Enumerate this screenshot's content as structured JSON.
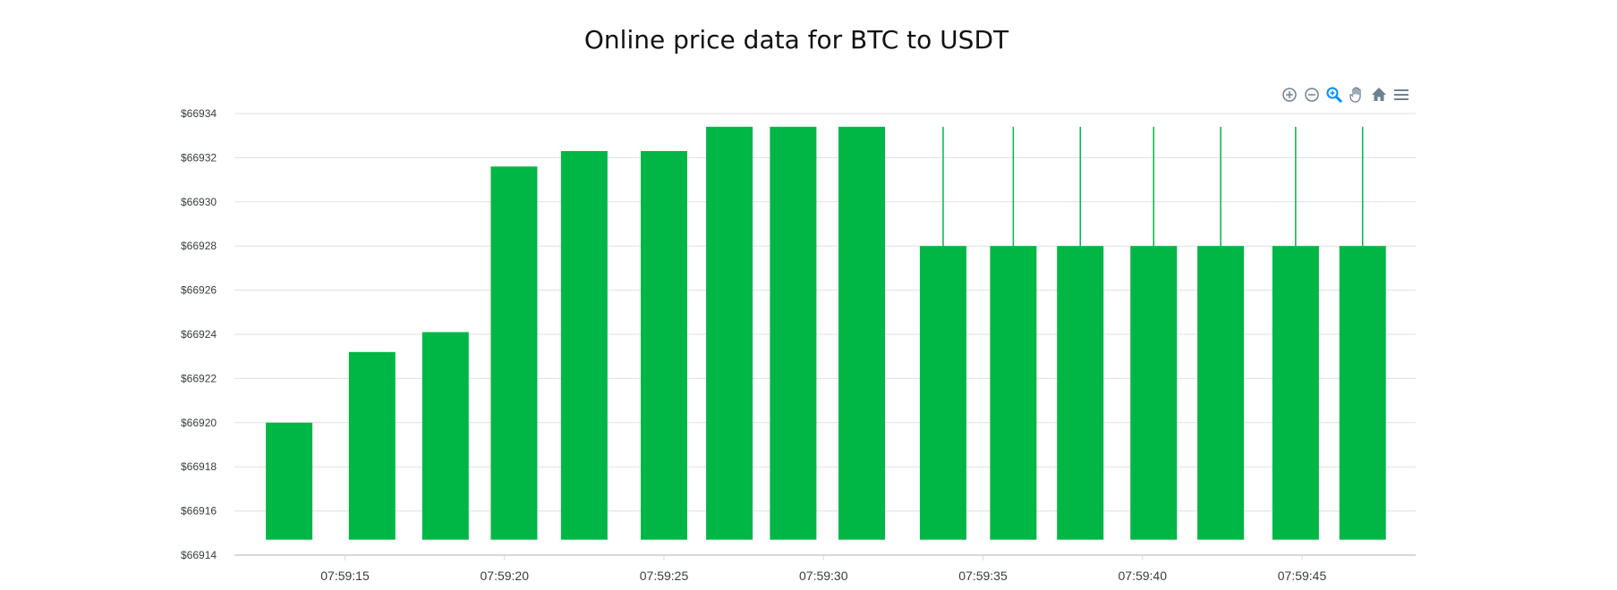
{
  "chart_data": {
    "type": "candlestick",
    "title": "Online price data for BTC to USDT",
    "xlabel": "",
    "ylabel": "",
    "ylim": [
      66914,
      66934
    ],
    "y_prefix": "$",
    "yticks": [
      66914,
      66916,
      66918,
      66920,
      66922,
      66924,
      66926,
      66928,
      66930,
      66932,
      66934
    ],
    "xticks": [
      "07:59:15",
      "07:59:20",
      "07:59:25",
      "07:59:30",
      "07:59:35",
      "07:59:40",
      "07:59:45"
    ],
    "xrange_seconds": [
      11.3,
      48.3
    ],
    "grid": true,
    "colors": {
      "up": "#00b746",
      "grid": "#e0e0e0",
      "axis": "#d8d8d8",
      "tool": "#6e8192",
      "tool_active": "#008ffb"
    },
    "candles": [
      {
        "t": 13.25,
        "open": 66914.7,
        "close": 66920.0,
        "high": 66920.0,
        "low": 66914.7
      },
      {
        "t": 15.85,
        "open": 66914.7,
        "close": 66923.2,
        "high": 66923.2,
        "low": 66914.7
      },
      {
        "t": 18.15,
        "open": 66914.7,
        "close": 66924.1,
        "high": 66924.1,
        "low": 66914.7
      },
      {
        "t": 20.3,
        "open": 66914.7,
        "close": 66931.6,
        "high": 66931.6,
        "low": 66914.7
      },
      {
        "t": 22.5,
        "open": 66914.7,
        "close": 66932.3,
        "high": 66932.3,
        "low": 66914.7
      },
      {
        "t": 25.0,
        "open": 66914.7,
        "close": 66932.3,
        "high": 66932.3,
        "low": 66914.7
      },
      {
        "t": 27.05,
        "open": 66914.7,
        "close": 66933.4,
        "high": 66933.4,
        "low": 66914.7
      },
      {
        "t": 29.05,
        "open": 66914.7,
        "close": 66933.4,
        "high": 66933.4,
        "low": 66914.7
      },
      {
        "t": 31.2,
        "open": 66914.7,
        "close": 66933.4,
        "high": 66933.4,
        "low": 66914.7
      },
      {
        "t": 33.75,
        "open": 66914.7,
        "close": 66928.0,
        "high": 66933.4,
        "low": 66914.7
      },
      {
        "t": 35.95,
        "open": 66914.7,
        "close": 66928.0,
        "high": 66933.4,
        "low": 66914.7
      },
      {
        "t": 38.05,
        "open": 66914.7,
        "close": 66928.0,
        "high": 66933.4,
        "low": 66914.7
      },
      {
        "t": 40.35,
        "open": 66914.7,
        "close": 66928.0,
        "high": 66933.4,
        "low": 66914.7
      },
      {
        "t": 42.45,
        "open": 66914.7,
        "close": 66928.0,
        "high": 66933.4,
        "low": 66914.7
      },
      {
        "t": 44.8,
        "open": 66914.7,
        "close": 66928.0,
        "high": 66933.4,
        "low": 66914.7
      },
      {
        "t": 46.9,
        "open": 66914.7,
        "close": 66928.0,
        "high": 66933.4,
        "low": 66914.7
      }
    ]
  },
  "toolbar": {
    "tools": [
      "zoom-in-icon",
      "zoom-out-icon",
      "selection-zoom-icon",
      "pan-icon",
      "home-icon",
      "menu-icon"
    ]
  }
}
